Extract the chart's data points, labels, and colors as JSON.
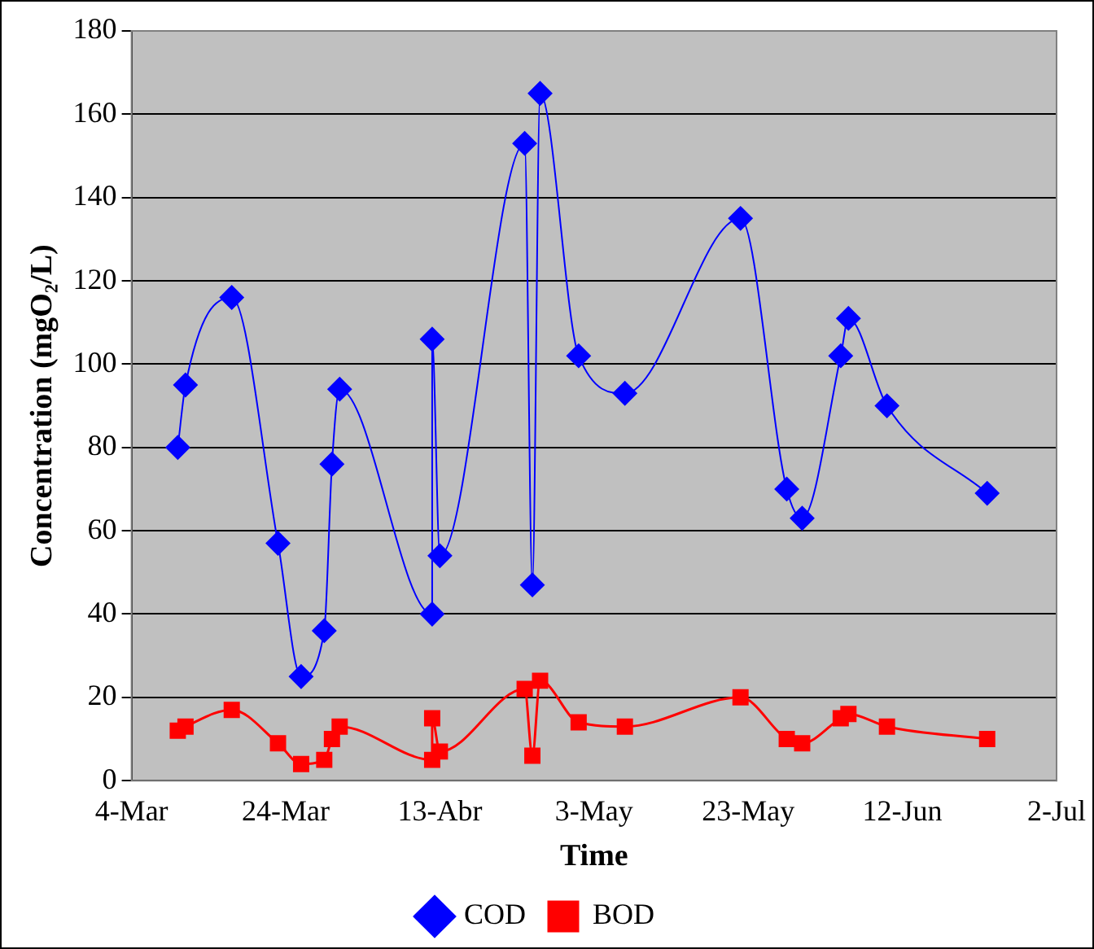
{
  "chart_data": {
    "type": "line",
    "xlabel": "Time",
    "ylabel": "Concentration (mgO₂/L)",
    "x": [
      "--03-10",
      "--03-11",
      "--03-17",
      "--03-23",
      "--03-26",
      "--03-29",
      "--03-30",
      "--03-31",
      "--04-12",
      "--04-12",
      "--04-13",
      "--04-24",
      "--04-25",
      "--04-26",
      "--05-01",
      "--05-07",
      "--05-22",
      "--05-28",
      "--05-30",
      "--06-04",
      "--06-05",
      "--06-10",
      "--06-23"
    ],
    "series": [
      {
        "name": "COD",
        "color": "#0000ff",
        "marker": "diamond",
        "values": [
          80,
          95,
          116,
          57,
          25,
          36,
          76,
          94,
          40,
          106,
          54,
          153,
          47,
          165,
          102,
          93,
          135,
          70,
          63,
          102,
          111,
          90,
          69
        ]
      },
      {
        "name": "BOD",
        "color": "#ff0000",
        "marker": "square",
        "values": [
          12,
          13,
          17,
          9,
          4,
          5,
          10,
          13,
          5,
          15,
          7,
          22,
          6,
          24,
          14,
          13,
          20,
          10,
          9,
          15,
          16,
          13,
          10
        ]
      }
    ],
    "xlim": [
      "--03-04",
      "--07-02"
    ],
    "xticks": [
      {
        "value": "--03-04",
        "label": "4-Mar"
      },
      {
        "value": "--03-24",
        "label": "24-Mar"
      },
      {
        "value": "--04-13",
        "label": "13-Abr"
      },
      {
        "value": "--05-03",
        "label": "3-May"
      },
      {
        "value": "--05-23",
        "label": "23-May"
      },
      {
        "value": "--06-12",
        "label": "12-Jun"
      },
      {
        "value": "--07-02",
        "label": "2-Jul"
      }
    ],
    "ylim": [
      0,
      180
    ],
    "yticks": [
      0,
      20,
      40,
      60,
      80,
      100,
      120,
      140,
      160,
      180
    ],
    "grid": "y",
    "legend": "bottom",
    "line_style": "solid"
  }
}
